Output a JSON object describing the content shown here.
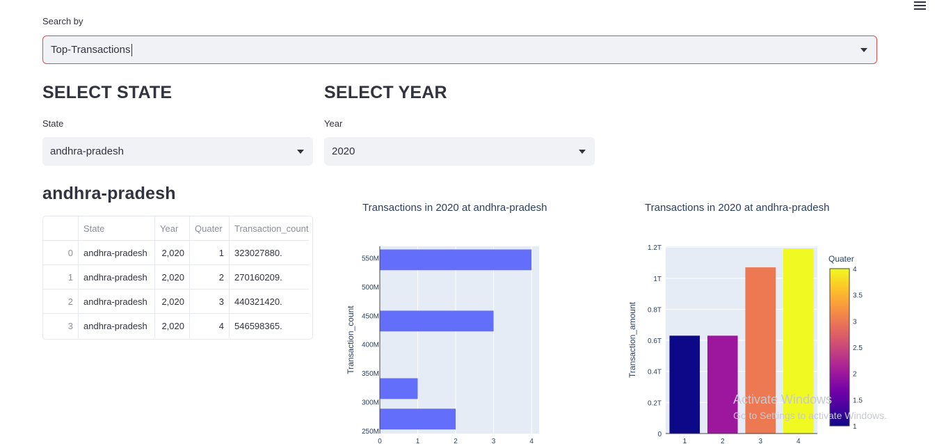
{
  "search": {
    "label": "Search by",
    "value": "Top-Transactions"
  },
  "state_section": {
    "heading": "SELECT STATE",
    "label": "State",
    "value": "andhra-pradesh"
  },
  "year_section": {
    "heading": "SELECT YEAR",
    "label": "Year",
    "value": "2020"
  },
  "result_heading": "andhra-pradesh",
  "table": {
    "columns": [
      "",
      "State",
      "Year",
      "Quater",
      "Transaction_count"
    ],
    "rows": [
      [
        "0",
        "andhra-pradesh",
        "2,020",
        "1",
        "323027880."
      ],
      [
        "1",
        "andhra-pradesh",
        "2,020",
        "2",
        "270160209."
      ],
      [
        "2",
        "andhra-pradesh",
        "2,020",
        "3",
        "440321420."
      ],
      [
        "3",
        "andhra-pradesh",
        "2,020",
        "4",
        "546598365."
      ]
    ]
  },
  "chart_data": [
    {
      "type": "bar",
      "orientation": "horizontal",
      "title": "Transactions in 2020 at andhra-pradesh",
      "ylabel": "Transaction_count",
      "xlabel": "",
      "x_ticks": [
        "0",
        "1",
        "2",
        "3",
        "4"
      ],
      "y_ticks": [
        "250M",
        "300M",
        "350M",
        "400M",
        "450M",
        "500M",
        "550M"
      ],
      "xlim": [
        0,
        4.2
      ],
      "ylim": [
        245000000,
        570000000
      ],
      "bar_color": "#636efa",
      "bars": [
        {
          "y": 323027880,
          "x": 1
        },
        {
          "y": 270160209,
          "x": 2
        },
        {
          "y": 440321420,
          "x": 3
        },
        {
          "y": 546598365,
          "x": 4
        }
      ]
    },
    {
      "type": "bar",
      "title": "Transactions in 2020 at andhra-pradesh",
      "ylabel": "Transaction_amount",
      "xlabel": "",
      "categories": [
        "1",
        "2",
        "3",
        "4"
      ],
      "values": [
        630000000000,
        630000000000,
        1070000000000,
        1190000000000
      ],
      "y_ticks": [
        "0",
        "0.2T",
        "0.4T",
        "0.6T",
        "0.8T",
        "1T",
        "1.2T"
      ],
      "ylim": [
        0,
        1200000000000
      ],
      "colorbar": {
        "title": "Quater",
        "ticks": [
          "1",
          "1.5",
          "2",
          "2.5",
          "3",
          "3.5",
          "4"
        ],
        "range": [
          1,
          4
        ]
      },
      "bar_colors": [
        "#0d0887",
        "#9c179e",
        "#ed7953",
        "#f0f921"
      ]
    }
  ],
  "watermark": {
    "line1": "Activate Windows",
    "line2": "Go to Settings to activate Windows."
  }
}
